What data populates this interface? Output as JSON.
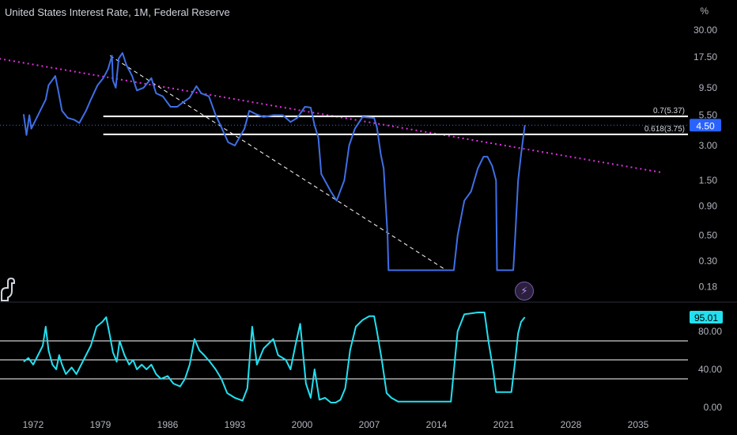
{
  "header": {
    "title": "United States Interest Rate, 1M, Federal Reserve",
    "unit": "%"
  },
  "chart_data": [
    {
      "type": "line",
      "title": "United States Interest Rate, 1M, Federal Reserve",
      "scale": "log",
      "x_ticks": [
        "1972",
        "1979",
        "1986",
        "1993",
        "2000",
        "2007",
        "2014",
        "2021",
        "2028",
        "2035"
      ],
      "y_ticks": [
        "30.00",
        "17.50",
        "9.50",
        "5.50",
        "3.00",
        "1.50",
        "0.90",
        "0.50",
        "0.30",
        "0.18"
      ],
      "last_value_label": "4.50",
      "series": [
        {
          "color": "#3f6fe6",
          "x": [
            1971.0,
            1971.3,
            1971.6,
            1971.8,
            1972.5,
            1973.3,
            1973.6,
            1974.3,
            1974.6,
            1975.0,
            1975.6,
            1976.3,
            1976.8,
            1977.5,
            1978.0,
            1978.7,
            1979.3,
            1979.8,
            1980.2,
            1980.3,
            1980.6,
            1980.9,
            1981.3,
            1981.7,
            1982.3,
            1982.8,
            1983.5,
            1984.3,
            1984.8,
            1985.5,
            1986.3,
            1987.0,
            1987.5,
            1988.3,
            1989.0,
            1989.5,
            1990.3,
            1991.0,
            1991.5,
            1992.3,
            1993.0,
            1994.0,
            1994.5,
            1995.2,
            1996.0,
            1997.0,
            1998.0,
            1998.8,
            1999.5,
            2000.3,
            2000.9,
            2001.3,
            2001.7,
            2002.0,
            2003.0,
            2003.6,
            2004.4,
            2004.9,
            2005.5,
            2006.3,
            2007.5,
            2007.8,
            2008.2,
            2008.5,
            2008.9,
            2009.0,
            2015.8,
            2016.2,
            2016.9,
            2017.6,
            2018.3,
            2018.9,
            2019.3,
            2019.8,
            2020.2,
            2020.3,
            2022.0,
            2022.2,
            2022.5,
            2022.8,
            2023.2
          ],
          "y": [
            5.6,
            3.7,
            5.5,
            4.2,
            5.5,
            7.5,
            10.0,
            12.0,
            9.0,
            6.0,
            5.2,
            5.0,
            4.7,
            6.0,
            7.5,
            10.0,
            11.5,
            13.8,
            18.0,
            11.0,
            9.5,
            17.0,
            19.0,
            15.0,
            12.0,
            9.0,
            9.5,
            11.5,
            8.5,
            8.0,
            6.5,
            6.5,
            7.0,
            7.8,
            9.8,
            8.5,
            8.0,
            5.5,
            4.5,
            3.2,
            3.0,
            4.2,
            6.0,
            5.6,
            5.3,
            5.5,
            5.5,
            4.8,
            5.2,
            6.5,
            6.4,
            4.5,
            3.5,
            1.7,
            1.2,
            1.0,
            1.5,
            3.0,
            4.2,
            5.3,
            5.2,
            4.3,
            2.5,
            1.9,
            0.5,
            0.25,
            0.25,
            0.5,
            1.0,
            1.2,
            1.9,
            2.4,
            2.4,
            2.0,
            1.5,
            0.25,
            0.25,
            0.5,
            1.5,
            2.5,
            4.5
          ]
        }
      ],
      "annotations": [
        {
          "label": "0.7(5.37)",
          "value": 5.37,
          "color": "#ffffff"
        },
        {
          "label": "0.618(3.75)",
          "value": 3.75,
          "color": "#ffffff"
        },
        {
          "label": "pink dotted trendline",
          "from": [
            1967.5,
            17.5
          ],
          "to": [
            2037.5,
            1.75
          ],
          "color": "#e52fe5"
        },
        {
          "label": "white dashed trendline",
          "from": [
            1980.0,
            18.0
          ],
          "to": [
            2015.0,
            0.25
          ],
          "color": "#ffffff"
        }
      ]
    },
    {
      "type": "line",
      "y_ticks": [
        "80.00",
        "40.00",
        "0.00"
      ],
      "last_value_label": "95.01",
      "reference_lines": [
        70,
        50,
        30
      ],
      "ylim": [
        -5,
        108
      ],
      "series": [
        {
          "color": "#22e0f0",
          "x": [
            1971.0,
            1971.5,
            1972.0,
            1972.5,
            1973.0,
            1973.3,
            1973.6,
            1974.0,
            1974.4,
            1974.7,
            1975.0,
            1975.4,
            1976.0,
            1976.5,
            1977.0,
            1977.5,
            1978.0,
            1978.6,
            1979.2,
            1979.6,
            1980.0,
            1980.3,
            1980.7,
            1981.0,
            1981.5,
            1982.0,
            1982.4,
            1982.8,
            1983.3,
            1983.8,
            1984.3,
            1984.8,
            1985.3,
            1986.0,
            1986.6,
            1987.3,
            1987.8,
            1988.3,
            1988.8,
            1989.3,
            1989.8,
            1990.4,
            1991.0,
            1991.6,
            1992.2,
            1993.0,
            1993.8,
            1994.3,
            1994.8,
            1995.3,
            1996.0,
            1997.0,
            1997.5,
            1998.3,
            1998.8,
            1999.3,
            1999.8,
            2000.4,
            2000.9,
            2001.3,
            2001.8,
            2002.4,
            2003.0,
            2003.5,
            2004.0,
            2004.5,
            2005.0,
            2005.6,
            2006.3,
            2007.0,
            2007.5,
            2007.8,
            2008.3,
            2008.8,
            2009.3,
            2010.0,
            2015.5,
            2016.2,
            2016.9,
            2017.6,
            2018.3,
            2019.0,
            2019.4,
            2019.9,
            2020.2,
            2020.5,
            2021.8,
            2022.2,
            2022.5,
            2022.8,
            2023.2
          ],
          "y": [
            48,
            52,
            45,
            55,
            65,
            85,
            60,
            45,
            40,
            55,
            45,
            35,
            42,
            35,
            45,
            55,
            65,
            85,
            90,
            95,
            75,
            58,
            48,
            70,
            55,
            45,
            50,
            40,
            45,
            40,
            45,
            35,
            30,
            33,
            25,
            22,
            30,
            45,
            72,
            60,
            55,
            48,
            40,
            30,
            15,
            10,
            7,
            20,
            85,
            45,
            62,
            72,
            55,
            50,
            40,
            65,
            88,
            25,
            10,
            40,
            8,
            10,
            5,
            5,
            8,
            20,
            60,
            85,
            92,
            96,
            96,
            80,
            50,
            15,
            10,
            6,
            6,
            80,
            98,
            99,
            100,
            100,
            70,
            40,
            16,
            16,
            16,
            50,
            78,
            90,
            95
          ]
        }
      ]
    }
  ],
  "icons": {
    "logo": "tradingview-dino-logo",
    "bolt": "lightning-bolt-icon"
  }
}
